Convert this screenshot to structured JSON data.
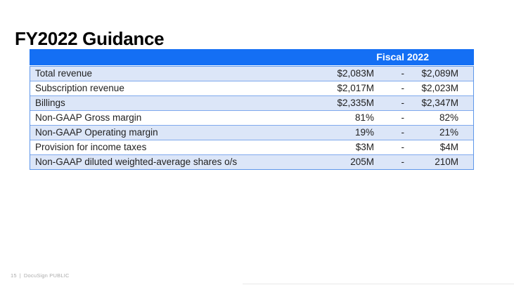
{
  "slide": {
    "title": "FY2022 Guidance",
    "footer": {
      "page_number": "15",
      "divider": "|",
      "label": "DocuSign PUBLIC"
    }
  },
  "table": {
    "header": "Fiscal 2022",
    "rows": [
      {
        "label": "Total revenue",
        "low": "$2,083M",
        "dash": "-",
        "high": "$2,089M"
      },
      {
        "label": "Subscription revenue",
        "low": "$2,017M",
        "dash": "-",
        "high": "$2,023M"
      },
      {
        "label": "Billings",
        "low": "$2,335M",
        "dash": "-",
        "high": "$2,347M"
      },
      {
        "label": "Non-GAAP Gross margin",
        "low": "81%",
        "dash": "-",
        "high": "82%"
      },
      {
        "label": "Non-GAAP Operating margin",
        "low": "19%",
        "dash": "-",
        "high": "21%"
      },
      {
        "label": "Provision for income taxes",
        "low": "$3M",
        "dash": "-",
        "high": "$4M"
      },
      {
        "label": "Non-GAAP diluted weighted-average shares o/s",
        "low": "205M",
        "dash": "-",
        "high": "210M"
      }
    ],
    "colors": {
      "header_bg": "#146FF4",
      "header_text": "#FFFFFF",
      "banded_row_bg": "#DCE6F8",
      "border": "#5E97EA",
      "body_text": "#212121"
    }
  }
}
